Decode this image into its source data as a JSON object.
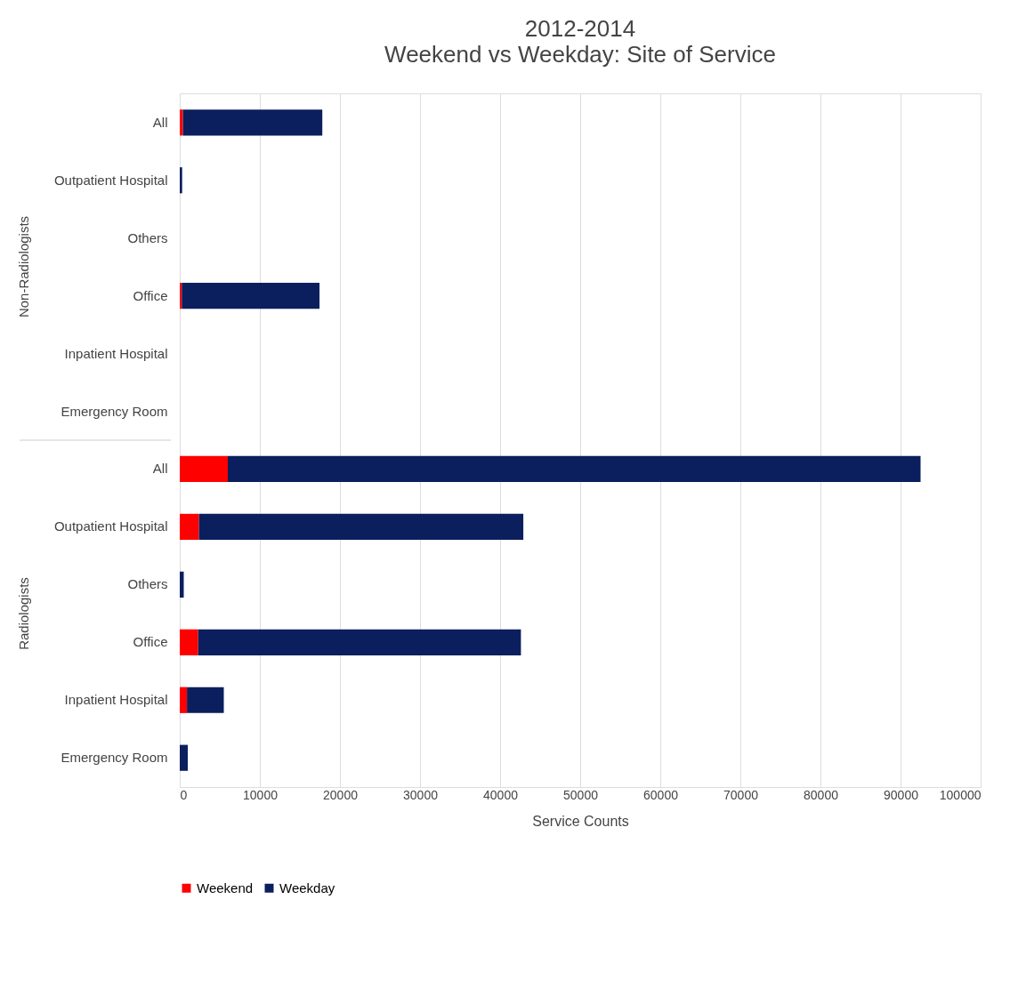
{
  "chart_data": {
    "type": "bar",
    "orientation": "horizontal",
    "stacked": true,
    "title": "2012-2014",
    "subtitle": "Weekend vs Weekday: Site of Service",
    "xlabel": "Service Counts",
    "categories": [
      "All",
      "Outpatient Hospital",
      "Others",
      "Office",
      "Inpatient Hospital",
      "Emergency Room",
      "All",
      "Outpatient Hospital",
      "Others",
      "Office",
      "Inpatient Hospital",
      "Emergency Room"
    ],
    "series": [
      {
        "name": "Weekend",
        "color": "#ff0000",
        "values": [
          400,
          null,
          null,
          250,
          null,
          null,
          6000,
          2400,
          null,
          2300,
          900,
          null
        ]
      },
      {
        "name": "Weekday",
        "color": "#0b1f5e",
        "values": [
          17400,
          300,
          null,
          17200,
          null,
          null,
          86500,
          40500,
          500,
          40300,
          4600,
          1000
        ]
      }
    ],
    "annotations": [
      "Non-Radiologists",
      "Radiologists"
    ],
    "xlim": [
      0,
      100000
    ],
    "xticks": [
      0,
      10000,
      20000,
      30000,
      40000,
      50000,
      60000,
      70000,
      80000,
      90000,
      100000
    ],
    "grid": "x",
    "legend": "bottom"
  }
}
